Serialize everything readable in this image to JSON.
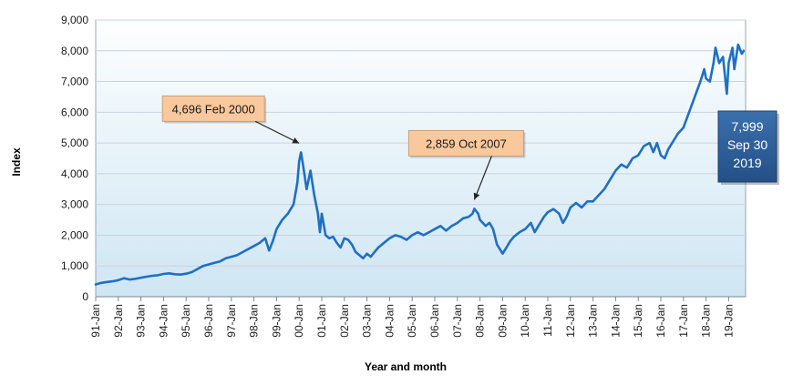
{
  "chart_data": {
    "type": "line",
    "title": "",
    "xlabel": "Year and month",
    "ylabel": "Index",
    "ylim": [
      0,
      9000
    ],
    "yticks": [
      0,
      1000,
      2000,
      3000,
      4000,
      5000,
      6000,
      7000,
      8000,
      9000
    ],
    "ytick_labels": [
      "0",
      "1,000",
      "2,000",
      "3,000",
      "4,000",
      "5,000",
      "6,000",
      "7,000",
      "8,000",
      "9,000"
    ],
    "xtick_labels": [
      "91-Jan",
      "92-Jan",
      "93-Jan",
      "94-Jan",
      "95-Jan",
      "96-Jan",
      "97-Jan",
      "98-Jan",
      "99-Jan",
      "00-Jan",
      "01-Jan",
      "02-Jan",
      "03-Jan",
      "04-Jan",
      "05-Jan",
      "06-Jan",
      "07-Jan",
      "08-Jan",
      "09-Jan",
      "10-Jan",
      "11-Jan",
      "12-Jan",
      "13-Jan",
      "14-Jan",
      "15-Jan",
      "16-Jan",
      "17-Jan",
      "18-Jan",
      "19-Jan"
    ],
    "x_start_year": 1991,
    "x_end_year": 2019.75,
    "grid": true,
    "series": [
      {
        "name": "Index",
        "color": "#1f6fc5",
        "points": [
          [
            1991.0,
            400
          ],
          [
            1991.25,
            450
          ],
          [
            1991.5,
            480
          ],
          [
            1991.75,
            500
          ],
          [
            1992.0,
            540
          ],
          [
            1992.25,
            600
          ],
          [
            1992.5,
            560
          ],
          [
            1992.75,
            580
          ],
          [
            1993.0,
            620
          ],
          [
            1993.25,
            650
          ],
          [
            1993.5,
            680
          ],
          [
            1993.75,
            700
          ],
          [
            1994.0,
            740
          ],
          [
            1994.25,
            760
          ],
          [
            1994.5,
            730
          ],
          [
            1994.75,
            720
          ],
          [
            1995.0,
            750
          ],
          [
            1995.25,
            800
          ],
          [
            1995.5,
            900
          ],
          [
            1995.75,
            1000
          ],
          [
            1996.0,
            1050
          ],
          [
            1996.25,
            1100
          ],
          [
            1996.5,
            1150
          ],
          [
            1996.75,
            1250
          ],
          [
            1997.0,
            1300
          ],
          [
            1997.25,
            1350
          ],
          [
            1997.5,
            1450
          ],
          [
            1997.75,
            1550
          ],
          [
            1998.0,
            1650
          ],
          [
            1998.25,
            1750
          ],
          [
            1998.5,
            1900
          ],
          [
            1998.67,
            1500
          ],
          [
            1998.83,
            1800
          ],
          [
            1999.0,
            2200
          ],
          [
            1999.25,
            2500
          ],
          [
            1999.5,
            2700
          ],
          [
            1999.75,
            3000
          ],
          [
            1999.92,
            3700
          ],
          [
            2000.0,
            4400
          ],
          [
            2000.08,
            4696
          ],
          [
            2000.17,
            4300
          ],
          [
            2000.33,
            3500
          ],
          [
            2000.5,
            4100
          ],
          [
            2000.67,
            3300
          ],
          [
            2000.83,
            2700
          ],
          [
            2000.92,
            2100
          ],
          [
            2001.0,
            2700
          ],
          [
            2001.17,
            2000
          ],
          [
            2001.33,
            1900
          ],
          [
            2001.5,
            1950
          ],
          [
            2001.67,
            1750
          ],
          [
            2001.83,
            1600
          ],
          [
            2002.0,
            1900
          ],
          [
            2002.17,
            1850
          ],
          [
            2002.33,
            1700
          ],
          [
            2002.5,
            1450
          ],
          [
            2002.67,
            1350
          ],
          [
            2002.83,
            1250
          ],
          [
            2003.0,
            1400
          ],
          [
            2003.17,
            1300
          ],
          [
            2003.33,
            1450
          ],
          [
            2003.5,
            1600
          ],
          [
            2003.75,
            1750
          ],
          [
            2004.0,
            1900
          ],
          [
            2004.25,
            2000
          ],
          [
            2004.5,
            1950
          ],
          [
            2004.75,
            1850
          ],
          [
            2005.0,
            2000
          ],
          [
            2005.25,
            2100
          ],
          [
            2005.5,
            2000
          ],
          [
            2005.75,
            2100
          ],
          [
            2006.0,
            2200
          ],
          [
            2006.25,
            2300
          ],
          [
            2006.5,
            2150
          ],
          [
            2006.75,
            2300
          ],
          [
            2007.0,
            2400
          ],
          [
            2007.25,
            2550
          ],
          [
            2007.5,
            2600
          ],
          [
            2007.67,
            2700
          ],
          [
            2007.75,
            2859
          ],
          [
            2007.92,
            2700
          ],
          [
            2008.0,
            2500
          ],
          [
            2008.25,
            2300
          ],
          [
            2008.42,
            2400
          ],
          [
            2008.58,
            2200
          ],
          [
            2008.75,
            1700
          ],
          [
            2008.92,
            1500
          ],
          [
            2009.0,
            1400
          ],
          [
            2009.17,
            1600
          ],
          [
            2009.33,
            1800
          ],
          [
            2009.5,
            1950
          ],
          [
            2009.75,
            2100
          ],
          [
            2010.0,
            2200
          ],
          [
            2010.25,
            2400
          ],
          [
            2010.42,
            2100
          ],
          [
            2010.58,
            2300
          ],
          [
            2010.83,
            2600
          ],
          [
            2011.0,
            2750
          ],
          [
            2011.25,
            2850
          ],
          [
            2011.5,
            2700
          ],
          [
            2011.67,
            2400
          ],
          [
            2011.83,
            2600
          ],
          [
            2012.0,
            2900
          ],
          [
            2012.25,
            3050
          ],
          [
            2012.5,
            2900
          ],
          [
            2012.75,
            3100
          ],
          [
            2013.0,
            3100
          ],
          [
            2013.25,
            3300
          ],
          [
            2013.5,
            3500
          ],
          [
            2013.75,
            3800
          ],
          [
            2014.0,
            4100
          ],
          [
            2014.25,
            4300
          ],
          [
            2014.5,
            4200
          ],
          [
            2014.75,
            4500
          ],
          [
            2015.0,
            4600
          ],
          [
            2015.25,
            4900
          ],
          [
            2015.5,
            5000
          ],
          [
            2015.67,
            4700
          ],
          [
            2015.83,
            5000
          ],
          [
            2016.0,
            4600
          ],
          [
            2016.17,
            4500
          ],
          [
            2016.33,
            4800
          ],
          [
            2016.5,
            5000
          ],
          [
            2016.75,
            5300
          ],
          [
            2017.0,
            5500
          ],
          [
            2017.25,
            6000
          ],
          [
            2017.5,
            6500
          ],
          [
            2017.75,
            7000
          ],
          [
            2017.92,
            7400
          ],
          [
            2018.0,
            7100
          ],
          [
            2018.17,
            7000
          ],
          [
            2018.33,
            7600
          ],
          [
            2018.42,
            8100
          ],
          [
            2018.58,
            7600
          ],
          [
            2018.75,
            7800
          ],
          [
            2018.92,
            6600
          ],
          [
            2019.0,
            7600
          ],
          [
            2019.17,
            8100
          ],
          [
            2019.25,
            7400
          ],
          [
            2019.42,
            8200
          ],
          [
            2019.58,
            7900
          ],
          [
            2019.67,
            7999
          ]
        ]
      }
    ],
    "annotations": [
      {
        "label": "4,696 Feb 2000",
        "x": 2000.08,
        "y": 4696
      },
      {
        "label": "2,859 Oct 2007",
        "x": 2007.75,
        "y": 2859
      }
    ],
    "callout": {
      "value": "7,999",
      "date": "Sep 30",
      "year": "2019"
    }
  },
  "colors": {
    "plot_bg_top": "#fdfeff",
    "plot_bg_bottom": "#cfe6f3",
    "line": "#1f6fc5",
    "annotation_fill": "#f9c89d",
    "annotation_stroke": "#c8a07a",
    "callout_fill": "#2b5c98",
    "callout_text": "#ffffff",
    "grid": "#c9d3dc",
    "text": "#1a1a1a"
  }
}
